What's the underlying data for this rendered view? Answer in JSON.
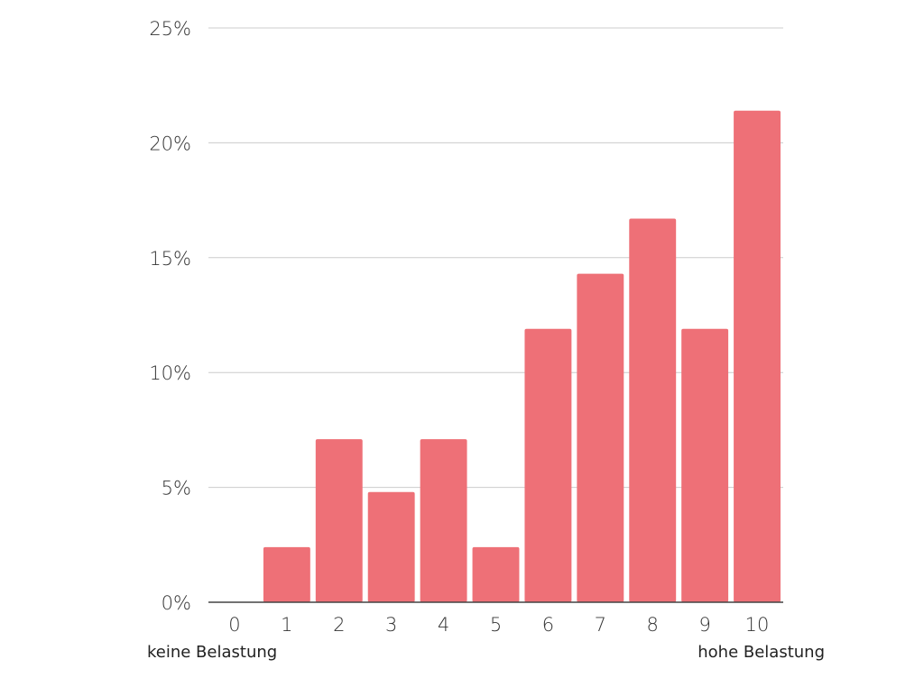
{
  "chart_data": {
    "type": "bar",
    "categories": [
      "0",
      "1",
      "2",
      "3",
      "4",
      "5",
      "6",
      "7",
      "8",
      "9",
      "10"
    ],
    "values": [
      0,
      2.4,
      7.1,
      4.8,
      7.1,
      2.4,
      11.9,
      14.3,
      16.7,
      11.9,
      21.4
    ],
    "ylim": [
      0,
      25
    ],
    "yticks": [
      0,
      5,
      10,
      15,
      20,
      25
    ],
    "ytick_labels": [
      "0%",
      "5%",
      "10%",
      "15%",
      "20%",
      "25%"
    ],
    "y_unit": "percent",
    "grid": true,
    "legend": "none",
    "bar_color": "#ee7077",
    "grid_color": "#cccccc",
    "axis_color": "#444444",
    "x_end_labels": {
      "left": "keine Belastung",
      "right": "hohe Belastung"
    }
  }
}
